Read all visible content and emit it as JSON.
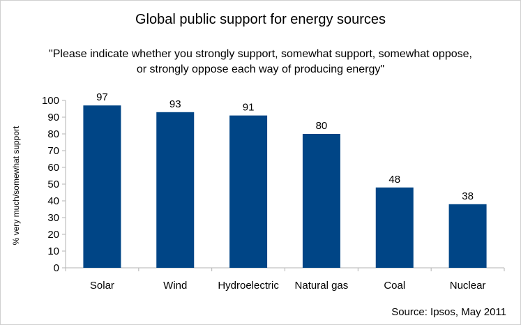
{
  "chart_data": {
    "type": "bar",
    "title": "Global public support for energy sources",
    "subtitle_lines": [
      "\"Please indicate whether you strongly support, somewhat support, somewhat oppose,",
      "or strongly oppose each way of producing energy\""
    ],
    "ylabel": "% very much/somewhat support",
    "xlabel": "",
    "categories": [
      "Solar",
      "Wind",
      "Hydroelectric",
      "Natural gas",
      "Coal",
      "Nuclear"
    ],
    "values": [
      97,
      93,
      91,
      80,
      48,
      38
    ],
    "ylim": [
      0,
      100
    ],
    "yticks": [
      0,
      10,
      20,
      30,
      40,
      50,
      60,
      70,
      80,
      90,
      100
    ],
    "bar_color": "#004586",
    "grid": false,
    "source": "Source: Ipsos, May 2011"
  }
}
